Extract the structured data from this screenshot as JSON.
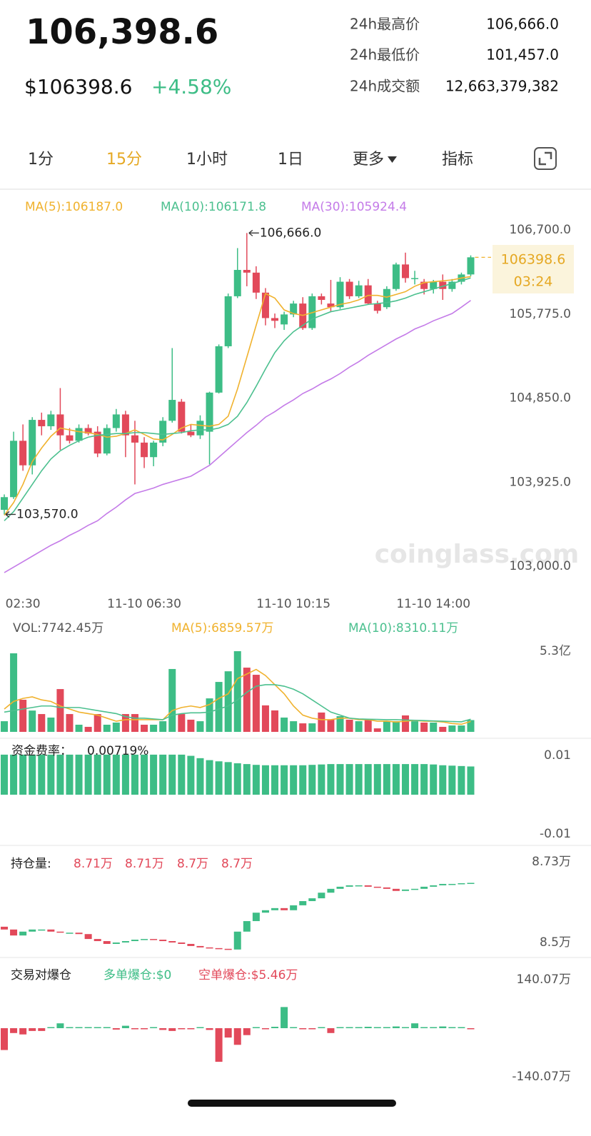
{
  "header": {
    "price": "106,398.6",
    "usd_price": "$106398.6",
    "change": "+4.58%",
    "stats": [
      {
        "label": "24h最高价",
        "value": "106,666.0"
      },
      {
        "label": "24h最低价",
        "value": "101,457.0"
      },
      {
        "label": "24h成交额",
        "value": "12,663,379,382"
      }
    ]
  },
  "tabs": [
    "1分",
    "15分",
    "1小时",
    "1日",
    "更多",
    "指标"
  ],
  "active_tab": 1,
  "chart_data": [
    {
      "type": "candlestick",
      "categories": [
        null,
        null,
        "02:30",
        null,
        null,
        null,
        null,
        null,
        null,
        null,
        null,
        null,
        null,
        null,
        null,
        "11-10 06:30",
        null,
        null,
        null,
        null,
        null,
        null,
        null,
        null,
        null,
        null,
        null,
        null,
        null,
        null,
        null,
        "11-10 10:15",
        null,
        null,
        null,
        null,
        null,
        null,
        null,
        null,
        null,
        null,
        null,
        null,
        null,
        null,
        "11-10 14:00",
        null,
        null,
        null,
        null
      ],
      "open": [
        103620,
        103760,
        104380,
        104110,
        104610,
        104540,
        104670,
        104440,
        104380,
        104520,
        104480,
        104240,
        104520,
        104670,
        104440,
        104360,
        104200,
        104360,
        104600,
        104810,
        104480,
        104440,
        104480,
        104910,
        105420,
        105970,
        106260,
        106230,
        106010,
        105730,
        105660,
        105770,
        105890,
        105620,
        105970,
        105890,
        105850,
        106130,
        105970,
        106090,
        105890,
        105850,
        106050,
        106320,
        106170,
        106130,
        106050,
        106130,
        106050,
        106130,
        106210
      ],
      "high": [
        103790,
        104480,
        104560,
        104640,
        104690,
        104710,
        104960,
        104520,
        104560,
        104560,
        104540,
        104560,
        104730,
        104710,
        104600,
        104420,
        104380,
        104640,
        105400,
        104840,
        104560,
        104660,
        104920,
        105440,
        106000,
        106500,
        106666,
        106300,
        106060,
        105780,
        105800,
        105920,
        105960,
        106000,
        106000,
        106150,
        106180,
        106160,
        106140,
        106160,
        105920,
        106080,
        106340,
        106450,
        106250,
        106160,
        106150,
        106210,
        106160,
        106230,
        106420
      ],
      "low": [
        103570,
        103740,
        104050,
        104010,
        104440,
        104500,
        104280,
        104350,
        104360,
        104440,
        104200,
        104220,
        104480,
        104200,
        103900,
        104080,
        104100,
        104320,
        104580,
        104460,
        104420,
        104400,
        104120,
        104900,
        105400,
        105950,
        106080,
        105940,
        105650,
        105620,
        105600,
        105740,
        105600,
        105600,
        105880,
        105800,
        105830,
        105940,
        105950,
        105880,
        105780,
        105830,
        106030,
        106120,
        106100,
        105990,
        106000,
        105930,
        106020,
        106100,
        106190
      ],
      "close": [
        103760,
        104380,
        104110,
        104610,
        104540,
        104670,
        104440,
        104380,
        104520,
        104460,
        104240,
        104520,
        104670,
        104440,
        104360,
        104200,
        104360,
        104600,
        104830,
        104480,
        104440,
        104600,
        104910,
        105420,
        105970,
        106260,
        106230,
        106010,
        105730,
        105700,
        105770,
        105890,
        105620,
        105970,
        105930,
        105850,
        106130,
        105970,
        106090,
        105890,
        105810,
        106050,
        106320,
        106170,
        106170,
        106050,
        106130,
        106050,
        106130,
        106210,
        106398.6
      ],
      "up_color": "#3dbd86",
      "down_color": "#e2495a",
      "lines": [
        {
          "name": "MA(5):106187.0",
          "color": "#f0b22e",
          "values": [
            103560,
            103700,
            103900,
            104150,
            104300,
            104430,
            104520,
            104500,
            104480,
            104470,
            104450,
            104420,
            104430,
            104460,
            104500,
            104450,
            104400,
            104390,
            104450,
            104520,
            104560,
            104550,
            104540,
            104560,
            104650,
            104950,
            105300,
            105650,
            106000,
            105950,
            105820,
            105780,
            105760,
            105790,
            105820,
            105850,
            105880,
            105900,
            105930,
            105980,
            105980,
            105960,
            105990,
            106020,
            106080,
            106120,
            106130,
            106140,
            106150,
            106170,
            106187
          ]
        },
        {
          "name": "MA(10):106171.8",
          "color": "#4cc08f",
          "values": [
            103500,
            103600,
            103750,
            103900,
            104050,
            104180,
            104270,
            104330,
            104380,
            104420,
            104440,
            104450,
            104460,
            104460,
            104470,
            104470,
            104460,
            104450,
            104460,
            104470,
            104490,
            104500,
            104500,
            104520,
            104560,
            104650,
            104800,
            104980,
            105170,
            105350,
            105480,
            105580,
            105650,
            105720,
            105760,
            105800,
            105820,
            105840,
            105860,
            105880,
            105890,
            105900,
            105920,
            105950,
            105990,
            106020,
            106050,
            106080,
            106110,
            106140,
            106171.8
          ]
        },
        {
          "name": "MA(30):105924.4",
          "color": "#c47be8",
          "values": [
            102930,
            102990,
            103050,
            103110,
            103170,
            103230,
            103280,
            103340,
            103390,
            103450,
            103500,
            103580,
            103650,
            103730,
            103800,
            103830,
            103860,
            103900,
            103930,
            103960,
            103990,
            104050,
            104110,
            104200,
            104290,
            104380,
            104470,
            104550,
            104640,
            104700,
            104770,
            104830,
            104900,
            104950,
            105010,
            105060,
            105120,
            105190,
            105250,
            105320,
            105380,
            105440,
            105500,
            105550,
            105610,
            105650,
            105700,
            105740,
            105780,
            105850,
            105924.4
          ]
        }
      ],
      "ylim": [
        103000,
        106700
      ],
      "yticks": [
        {
          "value": 106700,
          "label": "106,700.0"
        },
        {
          "value": 105775,
          "label": "105,775.0"
        },
        {
          "value": 104850,
          "label": "104,850.0"
        },
        {
          "value": 103925,
          "label": "103,925.0"
        },
        {
          "value": 103000,
          "label": "103,000.0"
        }
      ],
      "high_label": {
        "value": 106666,
        "label": "106,666.0"
      },
      "low_label": {
        "value": 103570,
        "label": "103,570.0"
      },
      "last_price": 106398.6,
      "countdown": "03:24",
      "watermark": "coinglass.com"
    },
    {
      "type": "bar",
      "title": "VOL:7742.45万",
      "values": [
        7000,
        51600,
        21100,
        14000,
        11700,
        9400,
        28100,
        11700,
        4700,
        3300,
        11700,
        4700,
        6100,
        11700,
        11700,
        4700,
        4700,
        7000,
        41300,
        11700,
        8000,
        7000,
        22000,
        32800,
        39800,
        53000,
        42200,
        37500,
        17400,
        14100,
        9400,
        7000,
        5600,
        5600,
        12700,
        8000,
        10300,
        8000,
        7000,
        8000,
        2300,
        7000,
        7000,
        10800,
        7000,
        6100,
        6100,
        3300,
        4200,
        4200,
        7742.45
      ],
      "lines": [
        {
          "name": "MA(5):6859.57万",
          "color": "#f0b22e",
          "values": [
            15000,
            20000,
            22000,
            23000,
            21000,
            20000,
            17000,
            15000,
            13000,
            12000,
            11000,
            9000,
            7000,
            8000,
            8000,
            8000,
            8000,
            8000,
            14000,
            16000,
            17000,
            16000,
            18000,
            22000,
            25000,
            35000,
            38000,
            41000,
            37000,
            31000,
            25000,
            17000,
            11000,
            9000,
            8000,
            8000,
            9000,
            9000,
            8000,
            8000,
            7000,
            7000,
            6500,
            7000,
            7500,
            7000,
            7000,
            6500,
            5500,
            5000,
            6859.57
          ]
        },
        {
          "name": "MA(10):8310.11万",
          "color": "#4cc08f",
          "values": [
            13000,
            14000,
            15000,
            16000,
            17000,
            17000,
            16000,
            16000,
            16000,
            15000,
            14000,
            13000,
            12000,
            10000,
            9000,
            9000,
            8500,
            8000,
            11000,
            12000,
            12500,
            12500,
            13000,
            15000,
            17000,
            21000,
            26000,
            30000,
            31000,
            31000,
            30000,
            28000,
            25000,
            21000,
            17000,
            13000,
            11000,
            9000,
            8500,
            8300,
            8200,
            8000,
            8000,
            7800,
            7600,
            7400,
            7200,
            7000,
            6800,
            6600,
            8310.11
          ]
        }
      ],
      "ylim": [
        0,
        53000
      ],
      "yticks": [
        {
          "value": 53000,
          "label": "5.3亿"
        }
      ]
    },
    {
      "type": "bar",
      "title": "资金费率：",
      "value_label": "0.00719%",
      "color": "#3dbd86",
      "values": [
        0.0102,
        0.0102,
        0.0102,
        0.0102,
        0.0102,
        0.0102,
        0.0102,
        0.0102,
        0.0102,
        0.0102,
        0.0102,
        0.0102,
        0.0102,
        0.0102,
        0.0102,
        0.0102,
        0.0102,
        0.0102,
        0.0102,
        0.0102,
        0.0099,
        0.0093,
        0.0088,
        0.0085,
        0.0083,
        0.008,
        0.0078,
        0.0076,
        0.0075,
        0.0075,
        0.0075,
        0.0075,
        0.0075,
        0.0076,
        0.0077,
        0.0078,
        0.0078,
        0.0078,
        0.0078,
        0.0078,
        0.0078,
        0.0078,
        0.0078,
        0.0078,
        0.0078,
        0.0078,
        0.0077,
        0.0075,
        0.0074,
        0.0073,
        0.00719
      ],
      "ylim": [
        -0.01,
        0.01
      ],
      "yticks": [
        0.01,
        -0.01
      ]
    },
    {
      "type": "candlestick",
      "title": "持仓量:",
      "readouts": [
        "8.71万",
        "8.71万",
        "8.7万",
        "8.7万"
      ],
      "readout_color": "#e2495a",
      "open": [
        8.545,
        8.537,
        8.52,
        8.531,
        8.537,
        8.537,
        8.531,
        8.528,
        8.528,
        8.524,
        8.51,
        8.504,
        8.496,
        8.5,
        8.504,
        8.508,
        8.51,
        8.508,
        8.504,
        8.5,
        8.496,
        8.49,
        8.486,
        8.484,
        8.482,
        8.48,
        8.531,
        8.561,
        8.585,
        8.592,
        8.598,
        8.592,
        8.606,
        8.618,
        8.626,
        8.642,
        8.653,
        8.659,
        8.663,
        8.663,
        8.659,
        8.657,
        8.653,
        8.647,
        8.651,
        8.653,
        8.659,
        8.663,
        8.667,
        8.667,
        8.669
      ],
      "close": [
        8.537,
        8.52,
        8.531,
        8.537,
        8.537,
        8.531,
        8.528,
        8.528,
        8.524,
        8.51,
        8.504,
        8.496,
        8.5,
        8.504,
        8.508,
        8.51,
        8.508,
        8.504,
        8.5,
        8.496,
        8.49,
        8.486,
        8.484,
        8.482,
        8.48,
        8.531,
        8.561,
        8.585,
        8.592,
        8.598,
        8.592,
        8.606,
        8.618,
        8.626,
        8.642,
        8.653,
        8.659,
        8.663,
        8.663,
        8.659,
        8.657,
        8.653,
        8.647,
        8.651,
        8.653,
        8.659,
        8.663,
        8.667,
        8.667,
        8.669,
        8.67
      ],
      "up_color": "#3dbd86",
      "down_color": "#e2495a",
      "ylim": [
        8.5,
        8.73
      ],
      "yticks": [
        {
          "value": 8.73,
          "label": "8.73万"
        },
        {
          "value": 8.5,
          "label": "8.5万"
        }
      ]
    },
    {
      "type": "bar",
      "title": "交易对爆仓",
      "legend": [
        {
          "label": "多单爆仓:$0",
          "color": "#3dbd86"
        },
        {
          "label": "空单爆仓:$5.46万",
          "color": "#e2495a"
        }
      ],
      "values": [
        -63,
        -14,
        -18,
        -8,
        -8,
        0,
        14,
        0,
        0,
        0,
        0,
        0,
        -4,
        7,
        -2,
        -3,
        0,
        -5,
        -8,
        -3,
        -2,
        0,
        -5,
        -97,
        -27,
        -48,
        -20,
        0,
        -2,
        4,
        61,
        0,
        -2,
        -2,
        0,
        -14,
        0,
        3,
        2,
        4,
        3,
        3,
        5,
        0,
        14,
        0,
        0,
        5,
        0,
        0,
        -2
      ],
      "up_color": "#3dbd86",
      "down_color": "#e2495a",
      "ylim": [
        -140.07,
        140.07
      ],
      "yticks": [
        {
          "value": 140.07,
          "label": "140.07万"
        },
        {
          "value": -140.07,
          "label": "-140.07万"
        }
      ]
    }
  ]
}
